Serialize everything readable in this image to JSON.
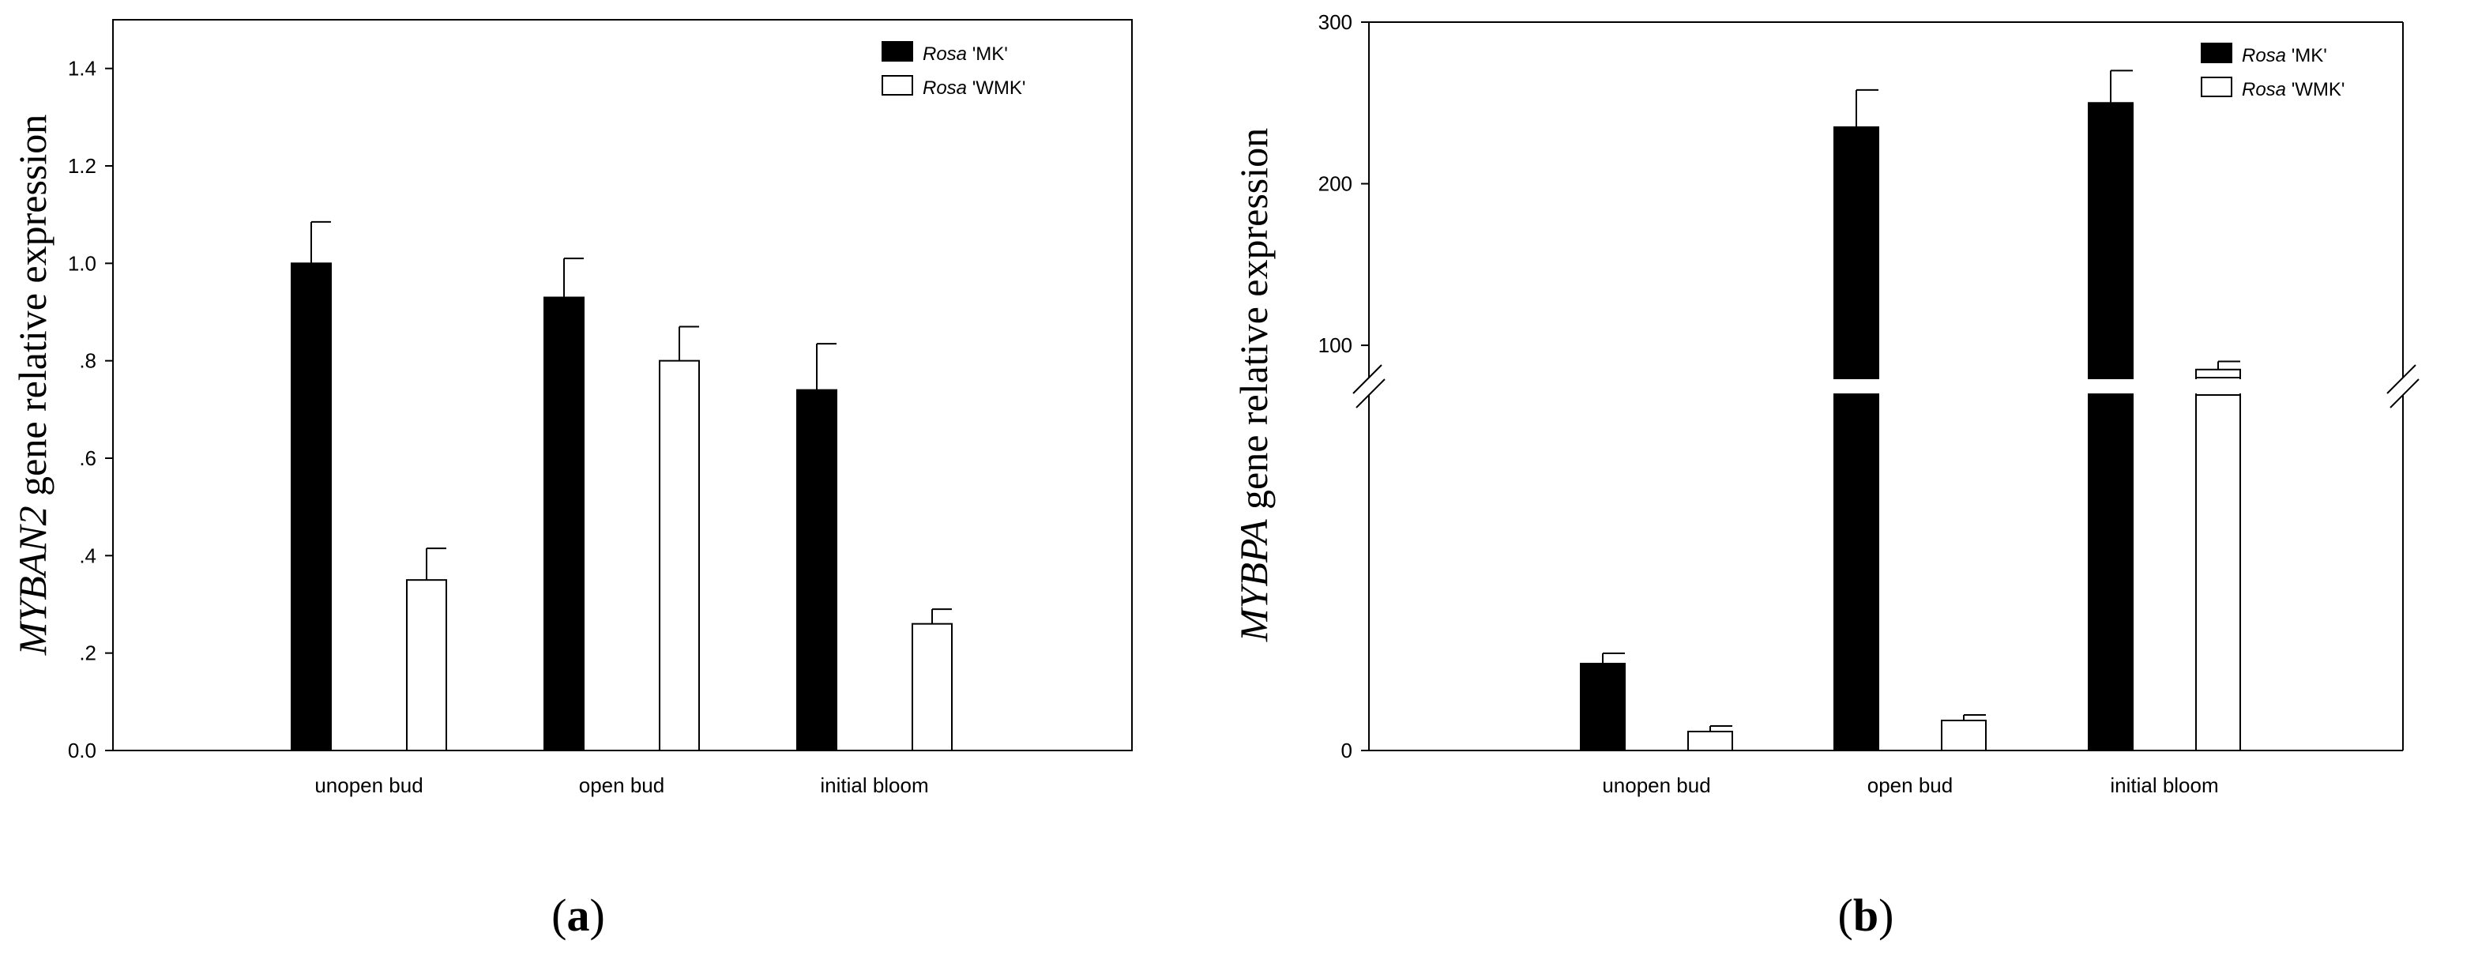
{
  "chart_data": [
    {
      "type": "bar",
      "panel_label_paren_open": "(",
      "panel_label_letter": "a",
      "panel_label_paren_close": ")",
      "ylabel_gene": "MYBAN2",
      "ylabel_rest": " gene relative expression",
      "categories": [
        "unopen bud",
        "open bud",
        "initial bloom"
      ],
      "yticks": [
        0.0,
        0.2,
        0.4,
        0.6,
        0.8,
        1.0,
        1.2,
        1.4
      ],
      "ytick_labels": [
        "0.0",
        ".2",
        ".4",
        ".6",
        ".8",
        "1.0",
        "1.2",
        "1.4"
      ],
      "ylim": [
        0,
        1.5
      ],
      "legend_position": "top-right",
      "series": [
        {
          "name_italic": "Rosa",
          "name_rest": " 'MK'",
          "color": "#000000",
          "values": [
            1.0,
            0.93,
            0.74
          ],
          "errors": [
            0.085,
            0.08,
            0.095
          ]
        },
        {
          "name_italic": "Rosa",
          "name_rest": " 'WMK'",
          "color": "#ffffff",
          "values": [
            0.35,
            0.8,
            0.26
          ],
          "errors": [
            0.065,
            0.07,
            0.03
          ]
        }
      ]
    },
    {
      "type": "bar",
      "panel_label_paren_open": "(",
      "panel_label_letter": "b",
      "panel_label_paren_close": ")",
      "ylabel_gene": "MYBPA",
      "ylabel_rest": " gene relative expression",
      "categories": [
        "unopen bud",
        "open bud",
        "initial bloom"
      ],
      "yaxis_break": [
        4.5,
        80
      ],
      "lower_ylim": [
        0,
        4.5
      ],
      "upper_ylim": [
        80,
        300
      ],
      "yticks": [
        0,
        100,
        200,
        300
      ],
      "ytick_labels": [
        "0",
        "100",
        "200",
        "300"
      ],
      "legend_position": "top-right",
      "series": [
        {
          "name_italic": "Rosa",
          "name_rest": " 'MK'",
          "color": "#000000",
          "values": [
            1.1,
            235,
            250
          ],
          "errors": [
            0.13,
            23,
            20
          ]
        },
        {
          "name_italic": "Rosa",
          "name_rest": " 'WMK'",
          "color": "#ffffff",
          "values": [
            0.24,
            0.38,
            85
          ],
          "errors": [
            0.07,
            0.07,
            5
          ]
        }
      ]
    }
  ]
}
